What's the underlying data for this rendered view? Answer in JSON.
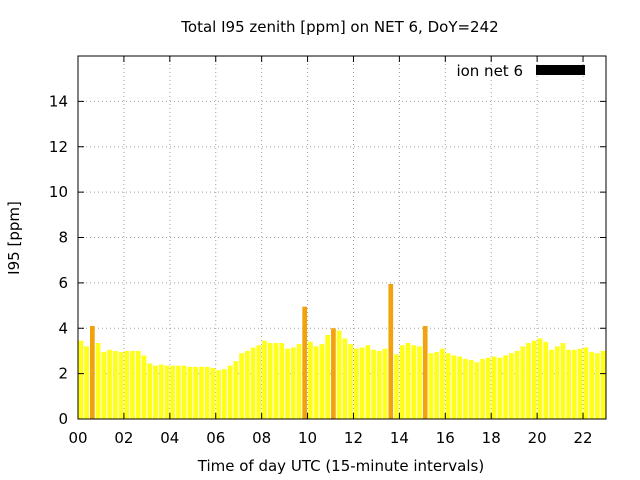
{
  "chart_data": {
    "type": "bar",
    "title": "Total I95 zenith [ppm] on NET 6, DoY=242",
    "xlabel": "Time of day UTC (15-minute intervals)",
    "ylabel": "I95 [ppm]",
    "xlim": [
      0,
      23
    ],
    "ylim": [
      0,
      16
    ],
    "x_ticks": [
      0,
      2,
      4,
      6,
      8,
      10,
      12,
      14,
      16,
      18,
      20,
      22
    ],
    "x_tick_labels": [
      "00",
      "02",
      "04",
      "06",
      "08",
      "10",
      "12",
      "14",
      "16",
      "18",
      "20",
      "22"
    ],
    "y_ticks": [
      0,
      2,
      4,
      6,
      8,
      10,
      12,
      14
    ],
    "y_tick_labels": [
      "0",
      "2",
      "4",
      "6",
      "8",
      "10",
      "12",
      "14"
    ],
    "grid": true,
    "legend_position": "top-right",
    "series": [
      {
        "name": "ion net 6",
        "color": "#000000",
        "bar_color": "#ffff1a",
        "highlight_color": "#f2a20c",
        "highlight_threshold": 4.0,
        "x": [
          0.0,
          0.25,
          0.5,
          0.75,
          1.0,
          1.25,
          1.5,
          1.75,
          2.0,
          2.25,
          2.5,
          2.75,
          3.0,
          3.25,
          3.5,
          3.75,
          4.0,
          4.25,
          4.5,
          4.75,
          5.0,
          5.25,
          5.5,
          5.75,
          6.0,
          6.25,
          6.5,
          6.75,
          7.0,
          7.25,
          7.5,
          7.75,
          8.0,
          8.25,
          8.5,
          8.75,
          9.0,
          9.25,
          9.5,
          9.75,
          10.0,
          10.25,
          10.5,
          10.75,
          11.0,
          11.25,
          11.5,
          11.75,
          12.0,
          12.25,
          12.5,
          12.75,
          13.0,
          13.25,
          13.5,
          13.75,
          14.0,
          14.25,
          14.5,
          14.75,
          15.0,
          15.25,
          15.5,
          15.75,
          16.0,
          16.25,
          16.5,
          16.75,
          17.0,
          17.25,
          17.5,
          17.75,
          18.0,
          18.25,
          18.5,
          18.75,
          19.0,
          19.25,
          19.5,
          19.75,
          20.0,
          20.25,
          20.5,
          20.75,
          21.0,
          21.25,
          21.5,
          21.75,
          22.0,
          22.25,
          22.5,
          22.75
        ],
        "values": [
          3.45,
          3.2,
          4.1,
          3.35,
          2.95,
          3.05,
          3.0,
          2.95,
          3.0,
          3.0,
          3.0,
          2.8,
          2.45,
          2.35,
          2.4,
          2.35,
          2.35,
          2.35,
          2.35,
          2.3,
          2.3,
          2.3,
          2.3,
          2.25,
          2.15,
          2.2,
          2.35,
          2.55,
          2.9,
          3.0,
          3.15,
          3.25,
          3.45,
          3.35,
          3.35,
          3.35,
          3.1,
          3.15,
          3.3,
          4.95,
          3.4,
          3.2,
          3.3,
          3.7,
          4.0,
          3.9,
          3.55,
          3.3,
          3.1,
          3.15,
          3.25,
          3.05,
          3.0,
          3.1,
          5.95,
          2.85,
          3.25,
          3.35,
          3.25,
          3.2,
          4.1,
          2.9,
          2.95,
          3.1,
          2.9,
          2.8,
          2.75,
          2.65,
          2.6,
          2.5,
          2.65,
          2.7,
          2.75,
          2.7,
          2.8,
          2.9,
          3.0,
          3.2,
          3.35,
          3.45,
          3.55,
          3.4,
          3.05,
          3.2,
          3.35,
          3.05,
          3.05,
          3.1,
          3.15,
          2.95,
          2.9,
          3.0
        ]
      }
    ]
  }
}
